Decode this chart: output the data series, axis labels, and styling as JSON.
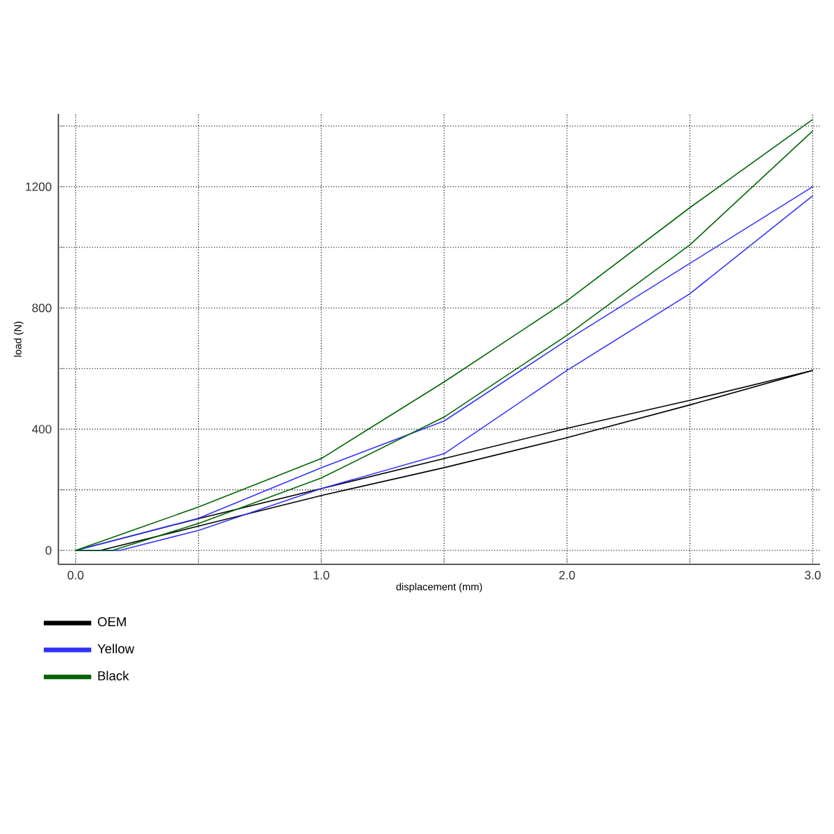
{
  "chart_data": {
    "type": "line",
    "xlabel": "displacement (mm)",
    "ylabel": "load (N)",
    "xlim": [
      -0.07,
      3.03
    ],
    "ylim": [
      -46,
      1440
    ],
    "xticks": [
      {
        "value": 0,
        "label": "0.0"
      },
      {
        "value": 0.5,
        "label": null
      },
      {
        "value": 1,
        "label": "1.0"
      },
      {
        "value": 1.5,
        "label": null
      },
      {
        "value": 2,
        "label": "2.0"
      },
      {
        "value": 2.5,
        "label": null
      },
      {
        "value": 3,
        "label": "3.0"
      }
    ],
    "yticks": [
      0,
      {
        "value": 200,
        "label": null
      },
      400,
      {
        "value": 600,
        "label": null
      },
      800,
      {
        "value": 1000,
        "label": null
      },
      1200,
      {
        "value": 1400,
        "label": null
      }
    ],
    "grid": true,
    "legend": "bottom left",
    "marker": "none",
    "line_style": "solid",
    "series": [
      {
        "name": "OEM",
        "color": "#000000",
        "x": [
          0,
          0.5,
          1.0,
          1.5,
          2.0,
          2.5,
          3.0
        ],
        "values": [
          0,
          105,
          204,
          303,
          403,
          495,
          594
        ]
      },
      {
        "color": "#000000",
        "x": [
          0,
          0.1,
          0.5,
          1.0,
          1.5,
          2.0,
          2.5,
          3.0
        ],
        "values": [
          0,
          0,
          80,
          181,
          273,
          372,
          480,
          594
        ]
      },
      {
        "name": "Yellow",
        "color": "#3333ff",
        "x": [
          0,
          0.5,
          1.0,
          1.5,
          2.0,
          2.5,
          3.0
        ],
        "values": [
          0,
          106,
          273,
          427,
          694,
          947,
          1200
        ]
      },
      {
        "color": "#3333ff",
        "x": [
          0,
          0.18,
          0.5,
          1.0,
          1.5,
          2.0,
          2.5,
          3.0
        ],
        "values": [
          0,
          0,
          66,
          204,
          319,
          594,
          847,
          1170
        ]
      },
      {
        "name": "Black",
        "color": "#006400",
        "x": [
          0,
          0.5,
          1.0,
          1.5,
          2.0,
          2.5,
          3.0
        ],
        "values": [
          0,
          143,
          303,
          556,
          824,
          1131,
          1422
        ]
      },
      {
        "color": "#006400",
        "x": [
          0,
          0.15,
          0.5,
          1.0,
          1.5,
          2.0,
          2.5,
          3.0
        ],
        "values": [
          0,
          0,
          89,
          239,
          440,
          710,
          1008,
          1384
        ]
      }
    ]
  }
}
